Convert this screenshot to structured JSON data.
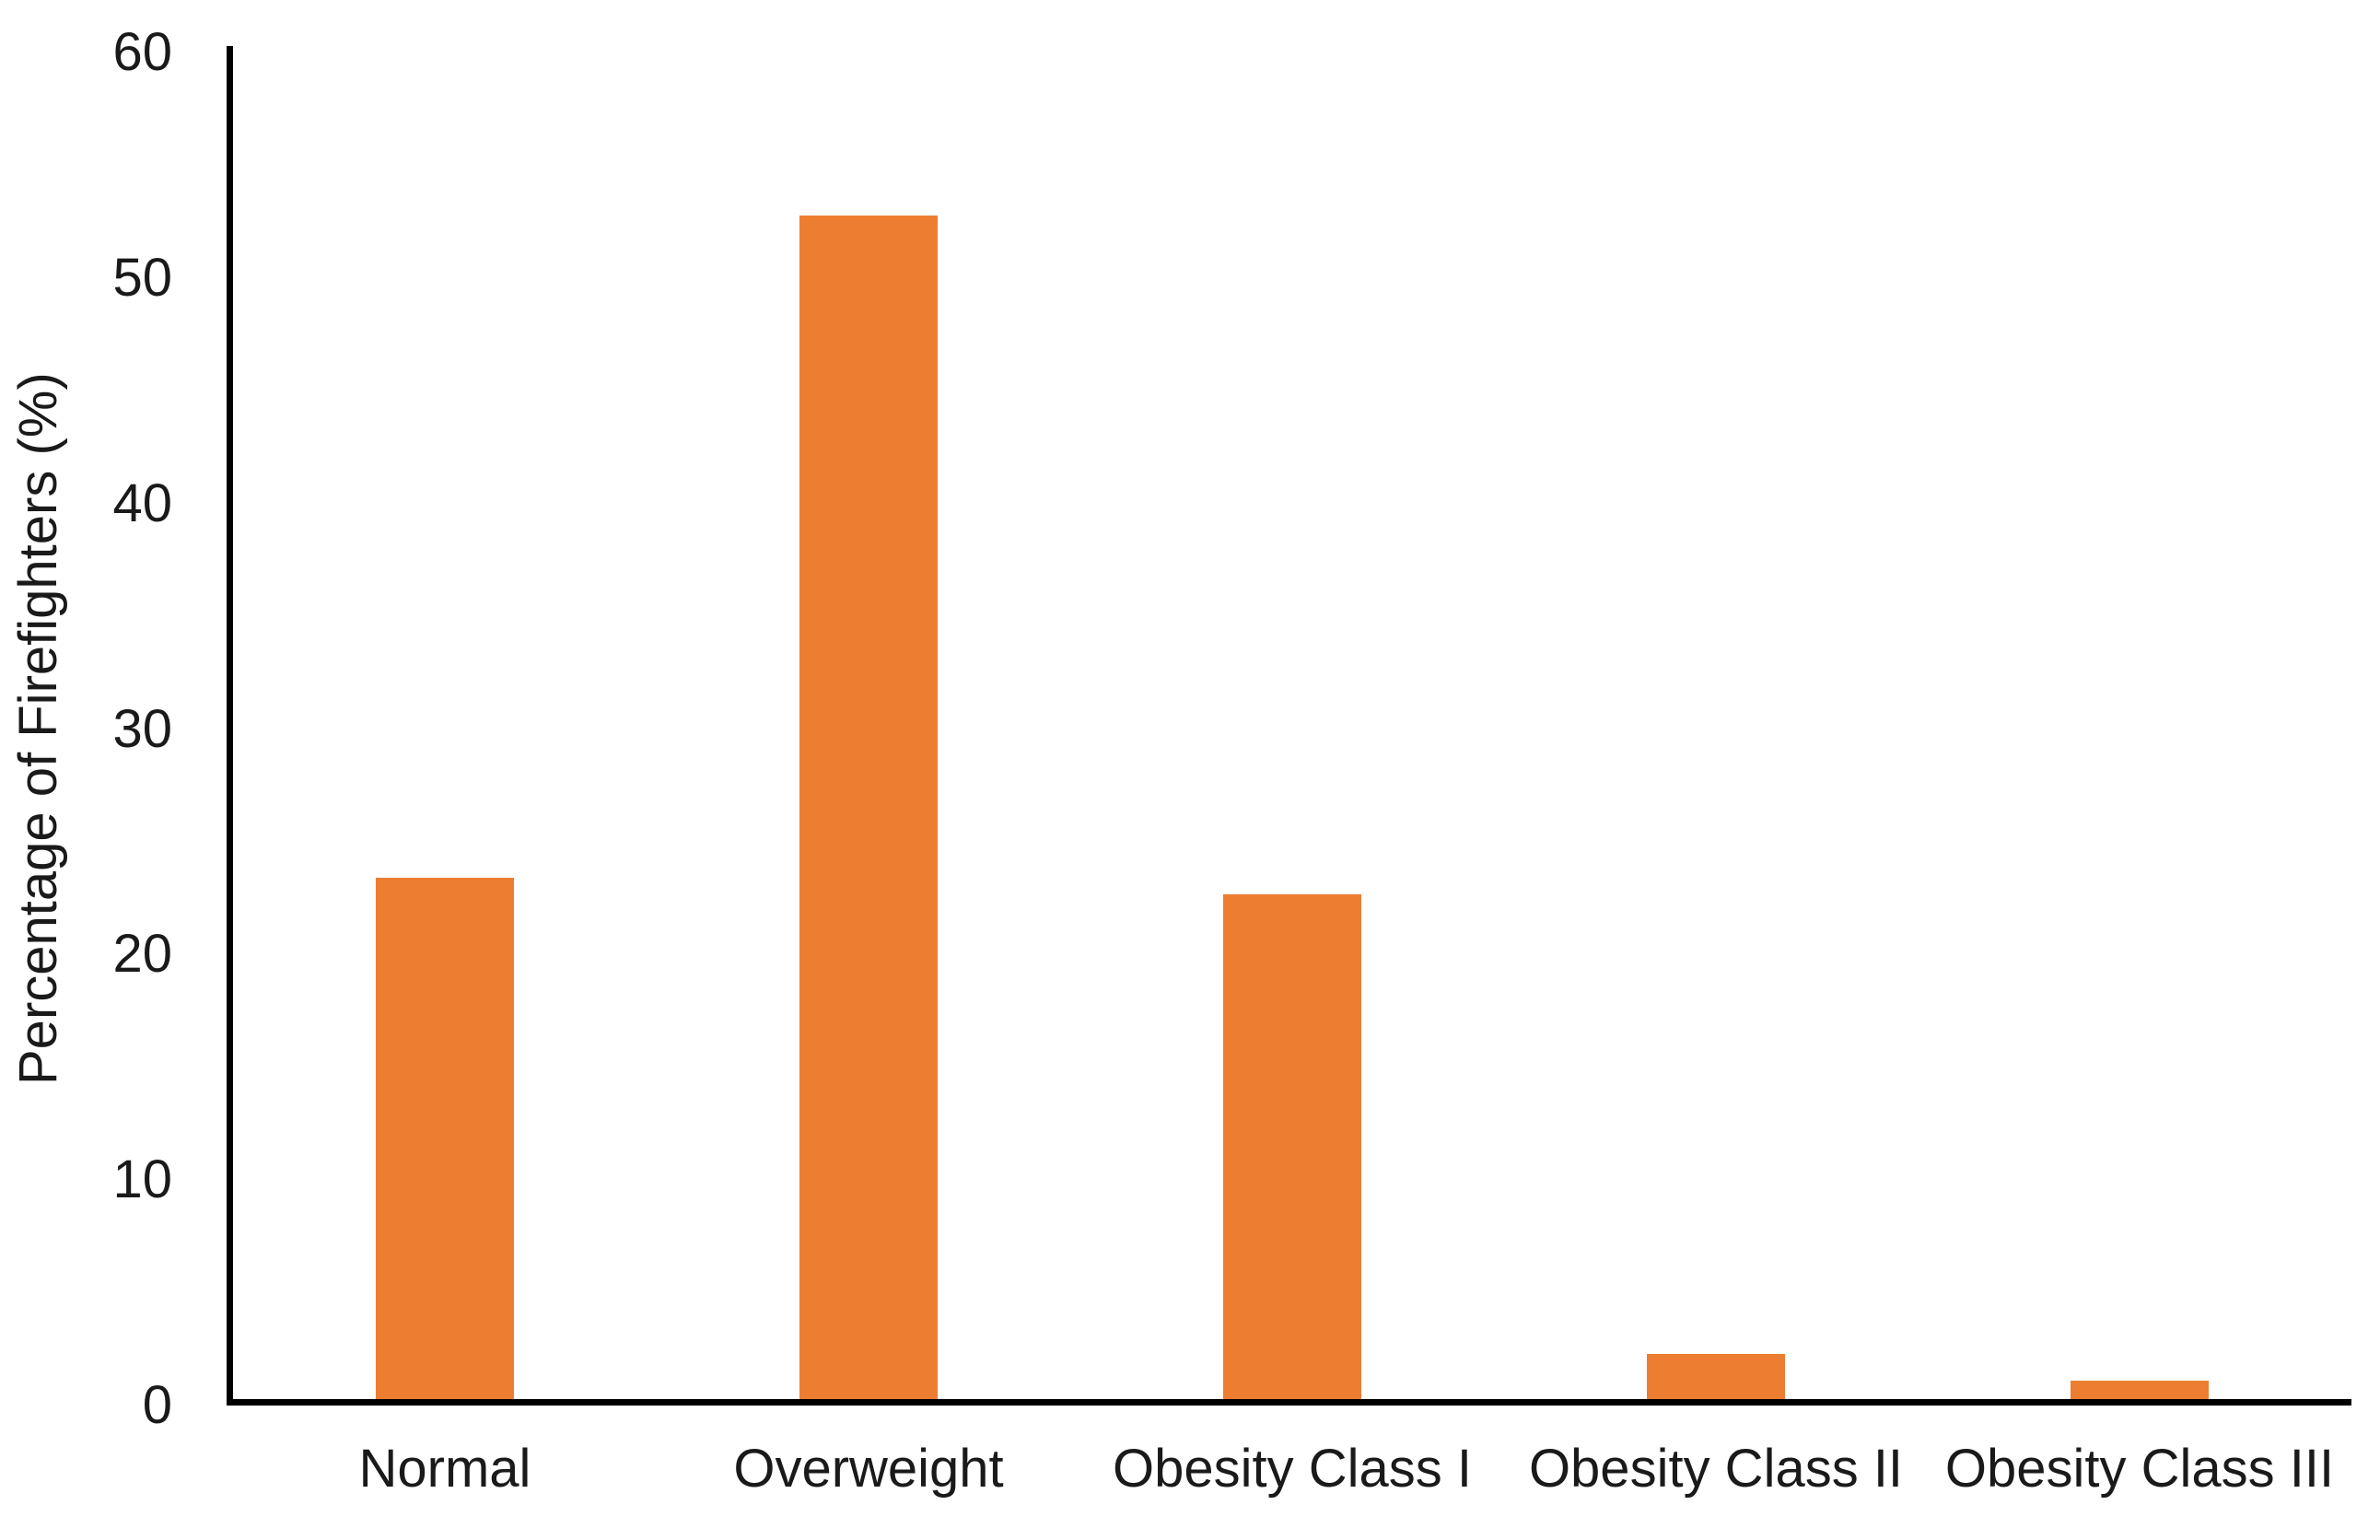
{
  "chart_data": {
    "type": "bar",
    "categories": [
      "Normal",
      "Overweight",
      "Obesity Class I",
      "Obesity Class II",
      "Obesity Class III"
    ],
    "values": [
      23.1,
      52.5,
      22.4,
      2.0,
      0.8
    ],
    "ylabel": "Percentage of Firefighters (%)",
    "ylim": [
      0,
      60
    ],
    "yticks": [
      0,
      10,
      20,
      30,
      40,
      50,
      60
    ],
    "bar_color": "#ED7D31",
    "axis_color": "#000000",
    "text_color": "#1A1A1A",
    "grid": false,
    "legend": false
  }
}
